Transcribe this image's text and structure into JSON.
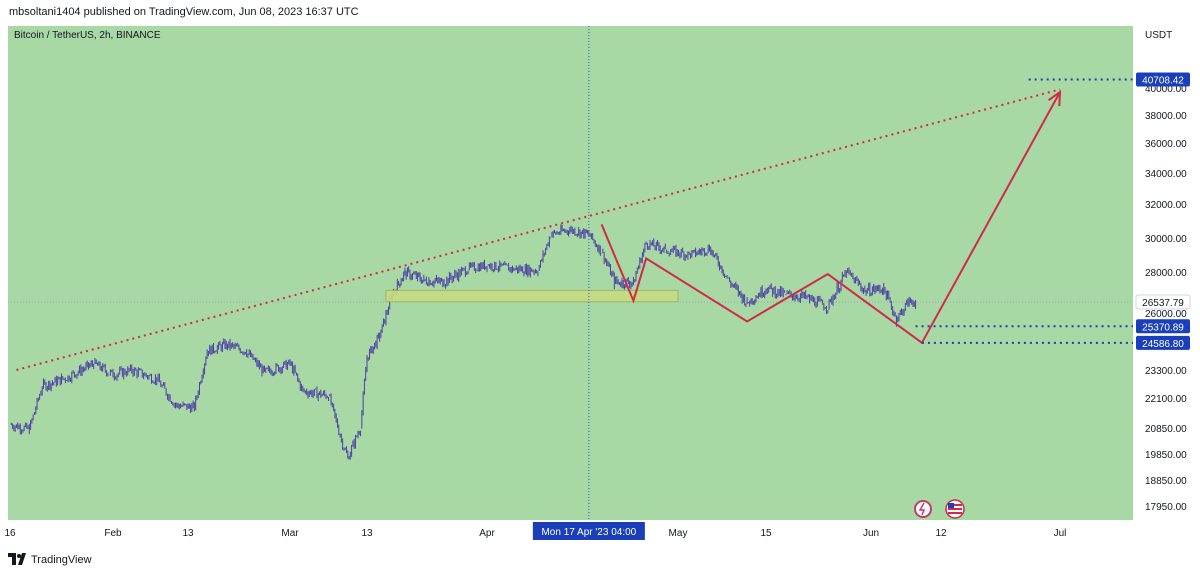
{
  "header": {
    "published_text": "mbsoltani1404 published on TradingView.com, Jun 08, 2023 16:37 UTC"
  },
  "footer": {
    "brand": "TradingView",
    "logo_icon": "tradingview-logo-icon"
  },
  "colors": {
    "background": "#a8d8a4",
    "candles": "#4b3fa3",
    "trend": "#d2284a",
    "marker": "#1b3fb8",
    "zone": "#c8dc82"
  },
  "chart_data": {
    "type": "line",
    "title": "Bitcoin / TetherUS, 2h, BINANCE",
    "ylabel": "USDT",
    "ylim": [
      17200,
      42500
    ],
    "y_ticks": [
      "17950.00",
      "18850.00",
      "19850.00",
      "20850.00",
      "22100.00",
      "23300.00",
      "26000.00",
      "28000.00",
      "30000.00",
      "32000.00",
      "34000.00",
      "36000.00",
      "38000.00",
      "40000.00"
    ],
    "x_ticks": [
      "16",
      "Feb",
      "13",
      "Mar",
      "13",
      "Apr",
      "May",
      "15",
      "Jun",
      "12",
      "Jul"
    ],
    "series": [
      {
        "points": [
          {
            "date": "2023-01-16",
            "y": 21000
          },
          {
            "date": "2023-01-19",
            "y": 20800
          },
          {
            "date": "2023-01-21",
            "y": 22600
          },
          {
            "date": "2023-01-25",
            "y": 23000
          },
          {
            "date": "2023-01-29",
            "y": 23600
          },
          {
            "date": "2023-02-01",
            "y": 23100
          },
          {
            "date": "2023-02-04",
            "y": 23300
          },
          {
            "date": "2023-02-08",
            "y": 22900
          },
          {
            "date": "2023-02-11",
            "y": 21800
          },
          {
            "date": "2023-02-14",
            "y": 21700
          },
          {
            "date": "2023-02-16",
            "y": 24200
          },
          {
            "date": "2023-02-19",
            "y": 24500
          },
          {
            "date": "2023-02-22",
            "y": 24200
          },
          {
            "date": "2023-02-25",
            "y": 23200
          },
          {
            "date": "2023-03-01",
            "y": 23600
          },
          {
            "date": "2023-03-03",
            "y": 22400
          },
          {
            "date": "2023-03-07",
            "y": 22200
          },
          {
            "date": "2023-03-09",
            "y": 20400
          },
          {
            "date": "2023-03-10",
            "y": 19700
          },
          {
            "date": "2023-03-12",
            "y": 20900
          },
          {
            "date": "2023-03-13",
            "y": 23900
          },
          {
            "date": "2023-03-15",
            "y": 24900
          },
          {
            "date": "2023-03-17",
            "y": 26900
          },
          {
            "date": "2023-03-19",
            "y": 28000
          },
          {
            "date": "2023-03-22",
            "y": 27600
          },
          {
            "date": "2023-03-25",
            "y": 27500
          },
          {
            "date": "2023-03-29",
            "y": 28200
          },
          {
            "date": "2023-04-01",
            "y": 28400
          },
          {
            "date": "2023-04-05",
            "y": 28200
          },
          {
            "date": "2023-04-09",
            "y": 28100
          },
          {
            "date": "2023-04-11",
            "y": 30200
          },
          {
            "date": "2023-04-14",
            "y": 30500
          },
          {
            "date": "2023-04-17",
            "y": 30200
          },
          {
            "date": "2023-04-19",
            "y": 29200
          },
          {
            "date": "2023-04-21",
            "y": 27500
          },
          {
            "date": "2023-04-24",
            "y": 27500
          },
          {
            "date": "2023-04-26",
            "y": 29700
          },
          {
            "date": "2023-04-29",
            "y": 29300
          },
          {
            "date": "2023-05-03",
            "y": 29000
          },
          {
            "date": "2023-05-06",
            "y": 29400
          },
          {
            "date": "2023-05-09",
            "y": 27600
          },
          {
            "date": "2023-05-12",
            "y": 26500
          },
          {
            "date": "2023-05-15",
            "y": 27200
          },
          {
            "date": "2023-05-18",
            "y": 26900
          },
          {
            "date": "2023-05-21",
            "y": 26800
          },
          {
            "date": "2023-05-25",
            "y": 26300
          },
          {
            "date": "2023-05-28",
            "y": 28000
          },
          {
            "date": "2023-05-31",
            "y": 27100
          },
          {
            "date": "2023-06-03",
            "y": 27200
          },
          {
            "date": "2023-06-05",
            "y": 25700
          },
          {
            "date": "2023-06-07",
            "y": 26600
          },
          {
            "date": "2023-06-08",
            "y": 26537.79
          }
        ]
      }
    ],
    "drawings": {
      "trendline": [
        {
          "date": "2023-01-17",
          "y": 23300
        },
        {
          "date": "2023-07-01",
          "y": 39900
        }
      ],
      "zone": {
        "from": "2023-03-16",
        "to": "2023-05-01",
        "low": 26550,
        "high": 27100
      },
      "path": [
        {
          "date": "2023-04-19",
          "y": 30800
        },
        {
          "date": "2023-04-24",
          "y": 26600
        },
        {
          "date": "2023-04-26",
          "y": 28800
        },
        {
          "date": "2023-05-12",
          "y": 25600
        },
        {
          "date": "2023-05-25",
          "y": 27900
        },
        {
          "date": "2023-06-09",
          "y": 24586.8
        },
        {
          "date": "2023-07-01",
          "y": 39700
        }
      ],
      "crosshair_date": "2023-04-17"
    },
    "price_labels": {
      "current": "26537.79",
      "target": "40708.42",
      "level1": "25370.89",
      "level2": "24586.80"
    },
    "crosshair_label": "Mon 17 Apr '23   04:00"
  }
}
